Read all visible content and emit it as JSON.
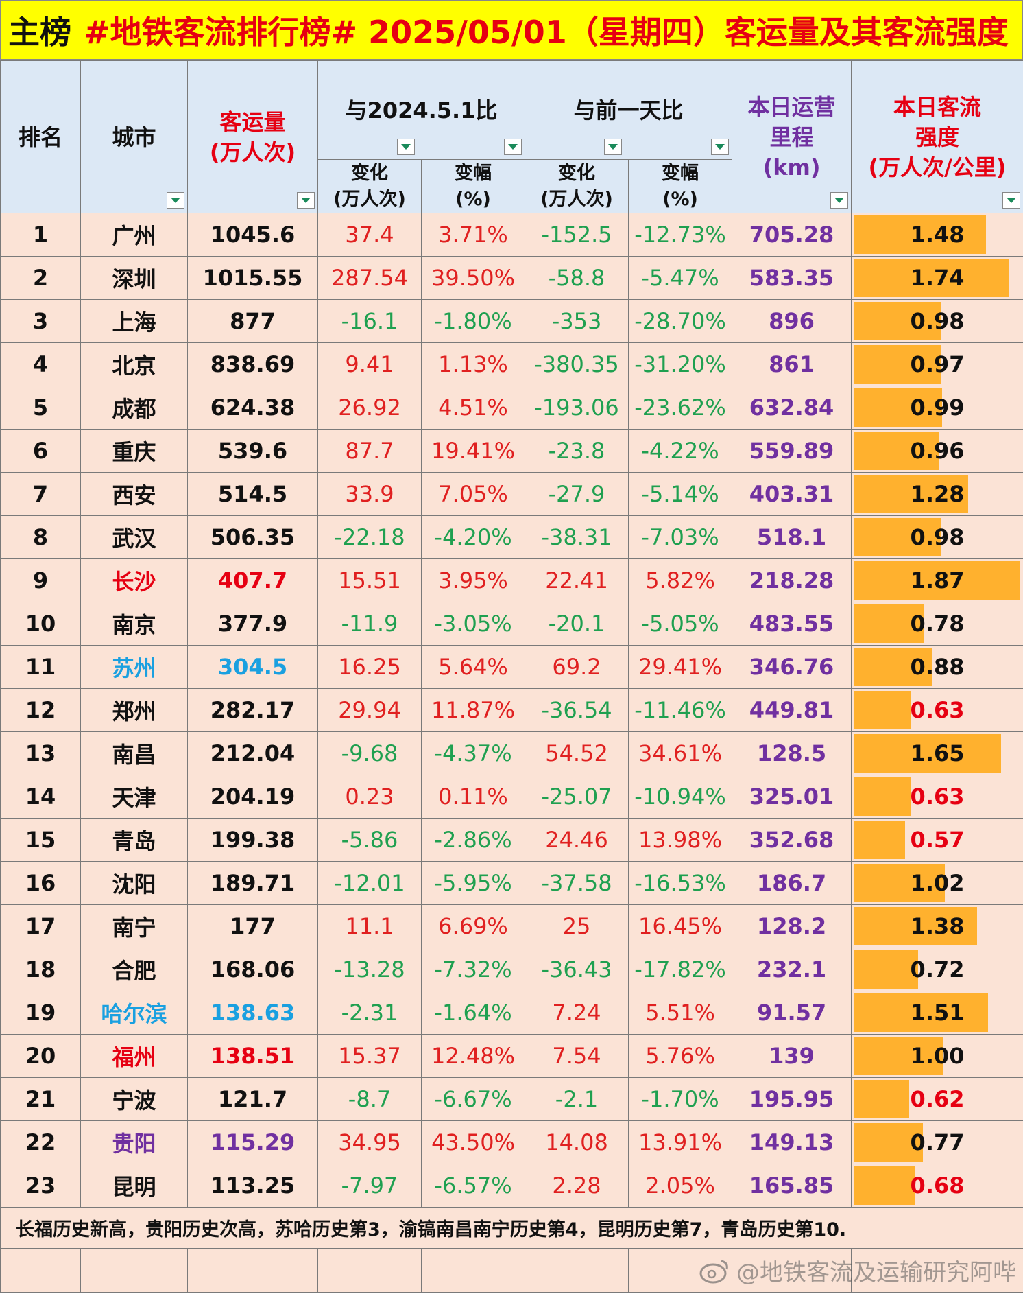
{
  "title": {
    "prefix": "主榜",
    "text": "#地铁客流排行榜# 2025/05/01（星期四）客运量及其客流强度"
  },
  "headers": {
    "rank": "排名",
    "city": "城市",
    "flow_line1": "客运量",
    "flow_line2": "(万人次)",
    "yoy_group": "与2024.5.1比",
    "dod_group": "与前一天比",
    "change_line1": "变化",
    "change_line2": "(万人次)",
    "pct_line1": "变幅",
    "pct_line2": "(%)",
    "km_line1": "本日运营",
    "km_line2": "里程",
    "km_line3": "(km)",
    "int_line1": "本日客流",
    "int_line2": "强度",
    "int_line3": "(万人次/公里)"
  },
  "rows": [
    {
      "rank": "1",
      "city": "广州",
      "flow": "1045.6",
      "yoy_change": "37.4",
      "yoy_pct": "3.71%",
      "dod_change": "-152.5",
      "dod_pct": "-12.73%",
      "km": "705.28",
      "intensity": "1.48",
      "intensity_value": 1.48
    },
    {
      "rank": "2",
      "city": "深圳",
      "flow": "1015.55",
      "yoy_change": "287.54",
      "yoy_pct": "39.50%",
      "dod_change": "-58.8",
      "dod_pct": "-5.47%",
      "km": "583.35",
      "intensity": "1.74",
      "intensity_value": 1.74
    },
    {
      "rank": "3",
      "city": "上海",
      "flow": "877",
      "yoy_change": "-16.1",
      "yoy_pct": "-1.80%",
      "dod_change": "-353",
      "dod_pct": "-28.70%",
      "km": "896",
      "intensity": "0.98",
      "intensity_value": 0.98
    },
    {
      "rank": "4",
      "city": "北京",
      "flow": "838.69",
      "yoy_change": "9.41",
      "yoy_pct": "1.13%",
      "dod_change": "-380.35",
      "dod_pct": "-31.20%",
      "km": "861",
      "intensity": "0.97",
      "intensity_value": 0.97
    },
    {
      "rank": "5",
      "city": "成都",
      "flow": "624.38",
      "yoy_change": "26.92",
      "yoy_pct": "4.51%",
      "dod_change": "-193.06",
      "dod_pct": "-23.62%",
      "km": "632.84",
      "intensity": "0.99",
      "intensity_value": 0.99
    },
    {
      "rank": "6",
      "city": "重庆",
      "flow": "539.6",
      "yoy_change": "87.7",
      "yoy_pct": "19.41%",
      "dod_change": "-23.8",
      "dod_pct": "-4.22%",
      "km": "559.89",
      "intensity": "0.96",
      "intensity_value": 0.96
    },
    {
      "rank": "7",
      "city": "西安",
      "flow": "514.5",
      "yoy_change": "33.9",
      "yoy_pct": "7.05%",
      "dod_change": "-27.9",
      "dod_pct": "-5.14%",
      "km": "403.31",
      "intensity": "1.28",
      "intensity_value": 1.28
    },
    {
      "rank": "8",
      "city": "武汉",
      "flow": "506.35",
      "yoy_change": "-22.18",
      "yoy_pct": "-4.20%",
      "dod_change": "-38.31",
      "dod_pct": "-7.03%",
      "km": "518.1",
      "intensity": "0.98",
      "intensity_value": 0.98
    },
    {
      "rank": "9",
      "city": "长沙",
      "flow": "407.7",
      "yoy_change": "15.51",
      "yoy_pct": "3.95%",
      "dod_change": "22.41",
      "dod_pct": "5.82%",
      "km": "218.28",
      "intensity": "1.87",
      "intensity_value": 1.87,
      "highlight": "red"
    },
    {
      "rank": "10",
      "city": "南京",
      "flow": "377.9",
      "yoy_change": "-11.9",
      "yoy_pct": "-3.05%",
      "dod_change": "-20.1",
      "dod_pct": "-5.05%",
      "km": "483.55",
      "intensity": "0.78",
      "intensity_value": 0.78
    },
    {
      "rank": "11",
      "city": "苏州",
      "flow": "304.5",
      "yoy_change": "16.25",
      "yoy_pct": "5.64%",
      "dod_change": "69.2",
      "dod_pct": "29.41%",
      "km": "346.76",
      "intensity": "0.88",
      "intensity_value": 0.88,
      "highlight": "blue"
    },
    {
      "rank": "12",
      "city": "郑州",
      "flow": "282.17",
      "yoy_change": "29.94",
      "yoy_pct": "11.87%",
      "dod_change": "-36.54",
      "dod_pct": "-11.46%",
      "km": "449.81",
      "intensity": "0.63",
      "intensity_value": 0.63
    },
    {
      "rank": "13",
      "city": "南昌",
      "flow": "212.04",
      "yoy_change": "-9.68",
      "yoy_pct": "-4.37%",
      "dod_change": "54.52",
      "dod_pct": "34.61%",
      "km": "128.5",
      "intensity": "1.65",
      "intensity_value": 1.65
    },
    {
      "rank": "14",
      "city": "天津",
      "flow": "204.19",
      "yoy_change": "0.23",
      "yoy_pct": "0.11%",
      "dod_change": "-25.07",
      "dod_pct": "-10.94%",
      "km": "325.01",
      "intensity": "0.63",
      "intensity_value": 0.63
    },
    {
      "rank": "15",
      "city": "青岛",
      "flow": "199.38",
      "yoy_change": "-5.86",
      "yoy_pct": "-2.86%",
      "dod_change": "24.46",
      "dod_pct": "13.98%",
      "km": "352.68",
      "intensity": "0.57",
      "intensity_value": 0.57
    },
    {
      "rank": "16",
      "city": "沈阳",
      "flow": "189.71",
      "yoy_change": "-12.01",
      "yoy_pct": "-5.95%",
      "dod_change": "-37.58",
      "dod_pct": "-16.53%",
      "km": "186.7",
      "intensity": "1.02",
      "intensity_value": 1.02
    },
    {
      "rank": "17",
      "city": "南宁",
      "flow": "177",
      "yoy_change": "11.1",
      "yoy_pct": "6.69%",
      "dod_change": "25",
      "dod_pct": "16.45%",
      "km": "128.2",
      "intensity": "1.38",
      "intensity_value": 1.38
    },
    {
      "rank": "18",
      "city": "合肥",
      "flow": "168.06",
      "yoy_change": "-13.28",
      "yoy_pct": "-7.32%",
      "dod_change": "-36.43",
      "dod_pct": "-17.82%",
      "km": "232.1",
      "intensity": "0.72",
      "intensity_value": 0.72
    },
    {
      "rank": "19",
      "city": "哈尔滨",
      "flow": "138.63",
      "yoy_change": "-2.31",
      "yoy_pct": "-1.64%",
      "dod_change": "7.24",
      "dod_pct": "5.51%",
      "km": "91.57",
      "intensity": "1.51",
      "intensity_value": 1.51,
      "highlight": "blue"
    },
    {
      "rank": "20",
      "city": "福州",
      "flow": "138.51",
      "yoy_change": "15.37",
      "yoy_pct": "12.48%",
      "dod_change": "7.54",
      "dod_pct": "5.76%",
      "km": "139",
      "intensity": "1.00",
      "intensity_value": 1.0,
      "highlight": "red"
    },
    {
      "rank": "21",
      "city": "宁波",
      "flow": "121.7",
      "yoy_change": "-8.7",
      "yoy_pct": "-6.67%",
      "dod_change": "-2.1",
      "dod_pct": "-1.70%",
      "km": "195.95",
      "intensity": "0.62",
      "intensity_value": 0.62
    },
    {
      "rank": "22",
      "city": "贵阳",
      "flow": "115.29",
      "yoy_change": "34.95",
      "yoy_pct": "43.50%",
      "dod_change": "14.08",
      "dod_pct": "13.91%",
      "km": "149.13",
      "intensity": "0.77",
      "intensity_value": 0.77,
      "highlight": "purple"
    },
    {
      "rank": "23",
      "city": "昆明",
      "flow": "113.25",
      "yoy_change": "-7.97",
      "yoy_pct": "-6.57%",
      "dod_change": "2.28",
      "dod_pct": "2.05%",
      "km": "165.85",
      "intensity": "0.68",
      "intensity_value": 0.68
    }
  ],
  "intensity_bar_max": 1.87,
  "intensity_low_threshold": 0.7,
  "footnote": "长福历史新高，贵阳历史次高，苏哈历史第3，渝镐南昌南宁历史第4，昆明历史第7，青岛历史第10.",
  "watermark": "@地铁客流及运输研究阿哔",
  "colors": {
    "title_bg": "#ffff00",
    "header_bg": "#dce8f5",
    "row_bg": "#fbe3d6",
    "positive": "#e02020",
    "negative": "#1fa050",
    "km": "#7030a0",
    "bar": "#ffb12e"
  }
}
